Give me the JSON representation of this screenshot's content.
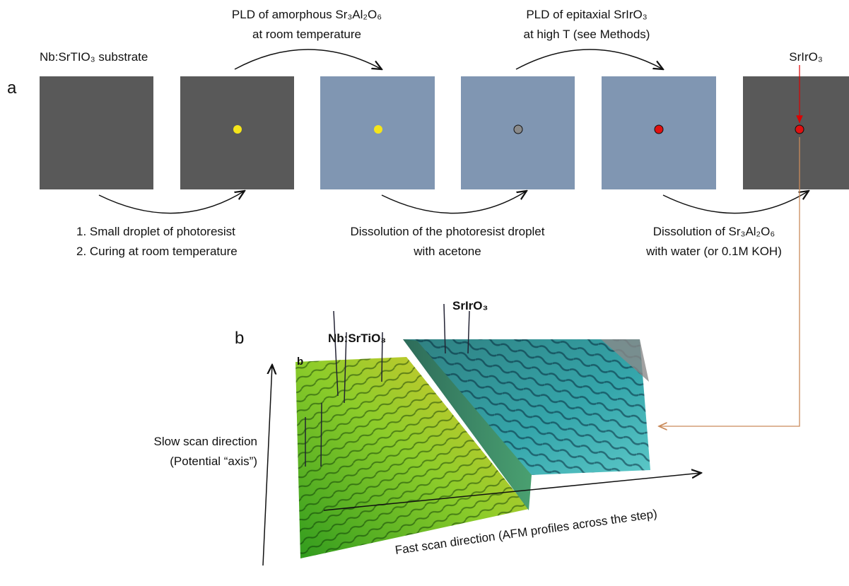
{
  "panel_a": {
    "label": "a",
    "substrate_label": "Nb:SrTIO₃ substrate",
    "top_steps": [
      {
        "lines": [
          "PLD of amorphous Sr₃Al₂O₆",
          "at room temperature"
        ]
      },
      {
        "lines": [
          "PLD of epitaxial SrIrO₃",
          "at high T (see Methods)"
        ]
      }
    ],
    "bottom_steps": [
      {
        "lines": [
          "1.  Small droplet of photoresist",
          "2.  Curing at room temperature"
        ]
      },
      {
        "lines": [
          "Dissolution of the photoresist droplet",
          "with acetone"
        ]
      },
      {
        "lines": [
          "Dissolution of Sr₃Al₂O₆",
          "with water (or 0.1M KOH)"
        ]
      }
    ],
    "target_label": "SrIrO₃"
  },
  "panel_b": {
    "label": "b",
    "inset_label": "b",
    "substrate_label": "Nb:SrTiO₃",
    "film_label": "SrIrO₃",
    "slow_axis": [
      "Slow scan direction",
      "(Potential “axis”)"
    ],
    "fast_axis": "Fast scan direction (AFM profiles across the step)"
  }
}
